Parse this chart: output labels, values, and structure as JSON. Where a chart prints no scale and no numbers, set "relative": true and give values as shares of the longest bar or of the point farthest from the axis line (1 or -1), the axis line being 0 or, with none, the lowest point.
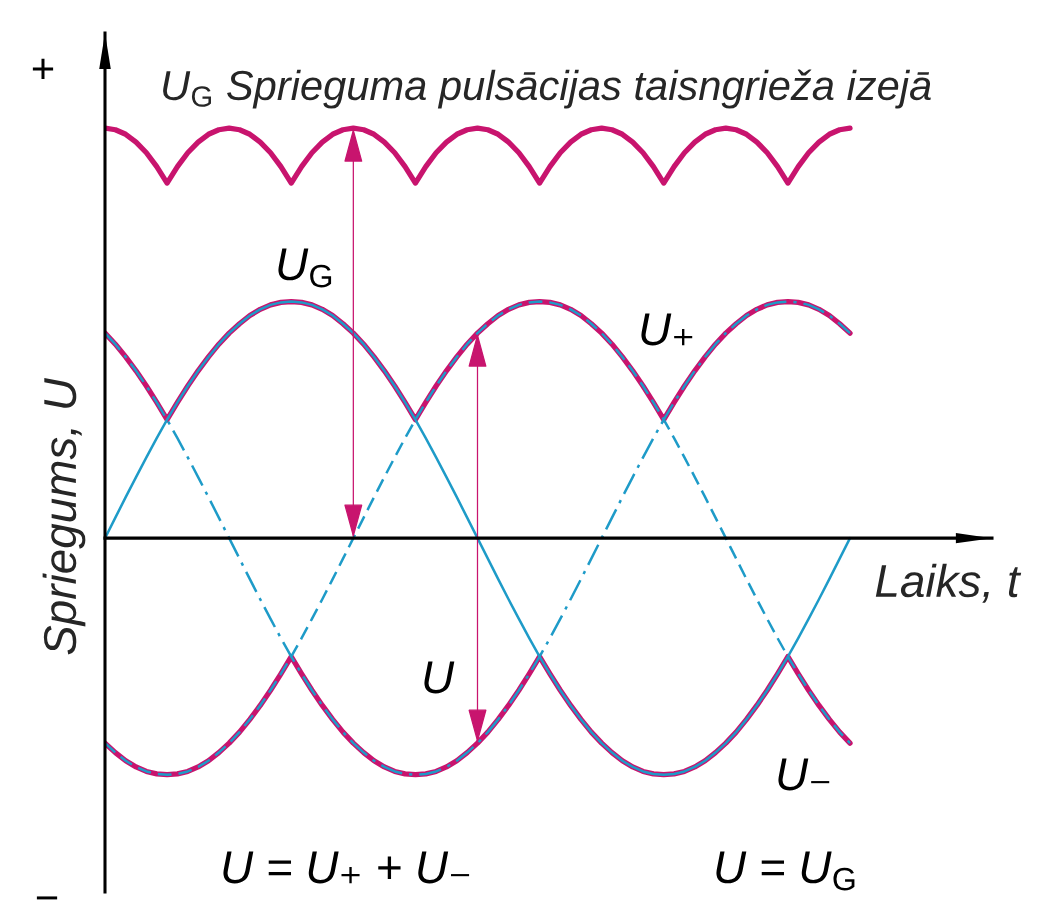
{
  "chart_data": {
    "type": "line",
    "relative": true,
    "title": "U$_{G}$ Sprieguma pulsācijas taisngrieža izejā",
    "xlabel": "Laiks, t",
    "ylabel": "Spriegums, U",
    "annotations": [
      "+",
      "−",
      "U$_{G}$",
      "U",
      "U = U₊ + U₋",
      "U = U$_{G}$"
    ],
    "categories": [
      null,
      null,
      null,
      null,
      null,
      null,
      null,
      null,
      null,
      null,
      null,
      null,
      null,
      null,
      null,
      null,
      null,
      null,
      null,
      null,
      null,
      null,
      null,
      null,
      null,
      null,
      null,
      null,
      null,
      null,
      null,
      null,
      null,
      null,
      null,
      null,
      null,
      null,
      null,
      null,
      null,
      null,
      null,
      null,
      null,
      null,
      null,
      null,
      null,
      null,
      null,
      null,
      null,
      null,
      null,
      null,
      null,
      null,
      null,
      null,
      null,
      null,
      null,
      null,
      null,
      null,
      null,
      null,
      null,
      null,
      null,
      null,
      null
    ],
    "series": [
      {
        "color": "#1e9bc8",
        "line_style": "solid",
        "values": [
          0,
          0.05,
          0.1,
          0.149,
          0.197,
          0.244,
          0.289,
          0.331,
          0.371,
          0.408,
          0.442,
          0.473,
          0.5,
          0.523,
          0.543,
          0.558,
          0.569,
          0.575,
          0.577,
          0.575,
          0.569,
          0.558,
          0.543,
          0.523,
          0.5,
          0.473,
          0.442,
          0.408,
          0.371,
          0.331,
          0.289,
          0.244,
          0.197,
          0.149,
          0.1,
          0.05,
          0,
          -0.05,
          -0.1,
          -0.149,
          -0.197,
          -0.244,
          -0.289,
          -0.331,
          -0.371,
          -0.408,
          -0.442,
          -0.473,
          -0.5,
          -0.523,
          -0.543,
          -0.558,
          -0.569,
          -0.575,
          -0.577,
          -0.575,
          -0.569,
          -0.558,
          -0.543,
          -0.523,
          -0.5,
          -0.473,
          -0.442,
          -0.408,
          -0.371,
          -0.331,
          -0.289,
          -0.244,
          -0.197,
          -0.149,
          -0.1,
          -0.05,
          0
        ]
      },
      {
        "color": "#1e9bc8",
        "line_style": "dashed",
        "values": [
          -0.5,
          -0.523,
          -0.543,
          -0.558,
          -0.569,
          -0.575,
          -0.577,
          -0.575,
          -0.569,
          -0.558,
          -0.543,
          -0.523,
          -0.5,
          -0.473,
          -0.442,
          -0.408,
          -0.371,
          -0.331,
          -0.289,
          -0.244,
          -0.197,
          -0.149,
          -0.1,
          -0.05,
          0,
          0.05,
          0.1,
          0.149,
          0.197,
          0.244,
          0.289,
          0.331,
          0.371,
          0.408,
          0.442,
          0.473,
          0.5,
          0.523,
          0.543,
          0.558,
          0.569,
          0.575,
          0.577,
          0.575,
          0.569,
          0.558,
          0.543,
          0.523,
          0.5,
          0.473,
          0.442,
          0.408,
          0.371,
          0.331,
          0.289,
          0.244,
          0.197,
          0.149,
          0.1,
          0.05,
          0,
          -0.05,
          -0.1,
          -0.149,
          -0.197,
          -0.244,
          -0.289,
          -0.331,
          -0.371,
          -0.408,
          -0.442,
          -0.473,
          -0.5
        ]
      },
      {
        "color": "#1e9bc8",
        "line_style": "dashdot",
        "values": [
          0.5,
          0.473,
          0.442,
          0.408,
          0.371,
          0.331,
          0.289,
          0.244,
          0.197,
          0.149,
          0.1,
          0.05,
          0,
          -0.05,
          -0.1,
          -0.149,
          -0.197,
          -0.244,
          -0.289,
          -0.331,
          -0.371,
          -0.408,
          -0.442,
          -0.473,
          -0.5,
          -0.523,
          -0.543,
          -0.558,
          -0.569,
          -0.575,
          -0.577,
          -0.575,
          -0.569,
          -0.558,
          -0.543,
          -0.523,
          -0.5,
          -0.473,
          -0.442,
          -0.408,
          -0.371,
          -0.331,
          -0.289,
          -0.244,
          -0.197,
          -0.149,
          -0.1,
          -0.05,
          0,
          0.05,
          0.1,
          0.149,
          0.197,
          0.244,
          0.289,
          0.331,
          0.371,
          0.408,
          0.442,
          0.473,
          0.5,
          0.523,
          0.543,
          0.558,
          0.569,
          0.575,
          0.577,
          0.575,
          0.569,
          0.558,
          0.543,
          0.523,
          0.5
        ]
      },
      {
        "name": "U₊",
        "color": "#c8146e",
        "line_style": "solid",
        "values": [
          0.5,
          0.473,
          0.442,
          0.408,
          0.371,
          0.331,
          0.289,
          0.331,
          0.371,
          0.408,
          0.442,
          0.473,
          0.5,
          0.523,
          0.543,
          0.558,
          0.569,
          0.575,
          0.577,
          0.575,
          0.569,
          0.558,
          0.543,
          0.523,
          0.5,
          0.473,
          0.442,
          0.408,
          0.371,
          0.331,
          0.289,
          0.331,
          0.371,
          0.408,
          0.442,
          0.473,
          0.5,
          0.523,
          0.543,
          0.558,
          0.569,
          0.575,
          0.577,
          0.575,
          0.569,
          0.558,
          0.543,
          0.523,
          0.5,
          0.473,
          0.442,
          0.408,
          0.371,
          0.331,
          0.289,
          0.331,
          0.371,
          0.408,
          0.442,
          0.473,
          0.5,
          0.523,
          0.543,
          0.558,
          0.569,
          0.575,
          0.577,
          0.575,
          0.569,
          0.558,
          0.543,
          0.523,
          0.5
        ]
      },
      {
        "name": "U₋",
        "color": "#c8146e",
        "line_style": "solid",
        "values": [
          -0.5,
          -0.523,
          -0.543,
          -0.558,
          -0.569,
          -0.575,
          -0.577,
          -0.575,
          -0.569,
          -0.558,
          -0.543,
          -0.523,
          -0.5,
          -0.473,
          -0.442,
          -0.408,
          -0.371,
          -0.331,
          -0.289,
          -0.331,
          -0.371,
          -0.408,
          -0.442,
          -0.473,
          -0.5,
          -0.523,
          -0.543,
          -0.558,
          -0.569,
          -0.575,
          -0.577,
          -0.575,
          -0.569,
          -0.558,
          -0.543,
          -0.523,
          -0.5,
          -0.473,
          -0.442,
          -0.408,
          -0.371,
          -0.331,
          -0.289,
          -0.331,
          -0.371,
          -0.408,
          -0.442,
          -0.473,
          -0.5,
          -0.523,
          -0.543,
          -0.558,
          -0.569,
          -0.575,
          -0.577,
          -0.575,
          -0.569,
          -0.558,
          -0.543,
          -0.523,
          -0.5,
          -0.473,
          -0.442,
          -0.408,
          -0.371,
          -0.331,
          -0.289,
          -0.331,
          -0.371,
          -0.408,
          -0.442,
          -0.473,
          -0.5
        ]
      },
      {
        "color": "#c8146e",
        "line_style": "solid",
        "values": [
          1,
          0.996,
          0.985,
          0.966,
          0.94,
          0.906,
          0.866,
          0.906,
          0.94,
          0.966,
          0.985,
          0.996,
          1,
          0.996,
          0.985,
          0.966,
          0.94,
          0.906,
          0.866,
          0.906,
          0.94,
          0.966,
          0.985,
          0.996,
          1,
          0.996,
          0.985,
          0.966,
          0.94,
          0.906,
          0.866,
          0.906,
          0.94,
          0.966,
          0.985,
          0.996,
          1,
          0.996,
          0.985,
          0.966,
          0.94,
          0.906,
          0.866,
          0.906,
          0.94,
          0.966,
          0.985,
          0.996,
          1,
          0.996,
          0.985,
          0.966,
          0.94,
          0.906,
          0.866,
          0.906,
          0.94,
          0.966,
          0.985,
          0.996,
          1,
          0.996,
          0.985,
          0.966,
          0.94,
          0.906,
          0.866,
          0.906,
          0.94,
          0.966,
          0.985,
          0.996,
          1
        ]
      }
    ]
  }
}
